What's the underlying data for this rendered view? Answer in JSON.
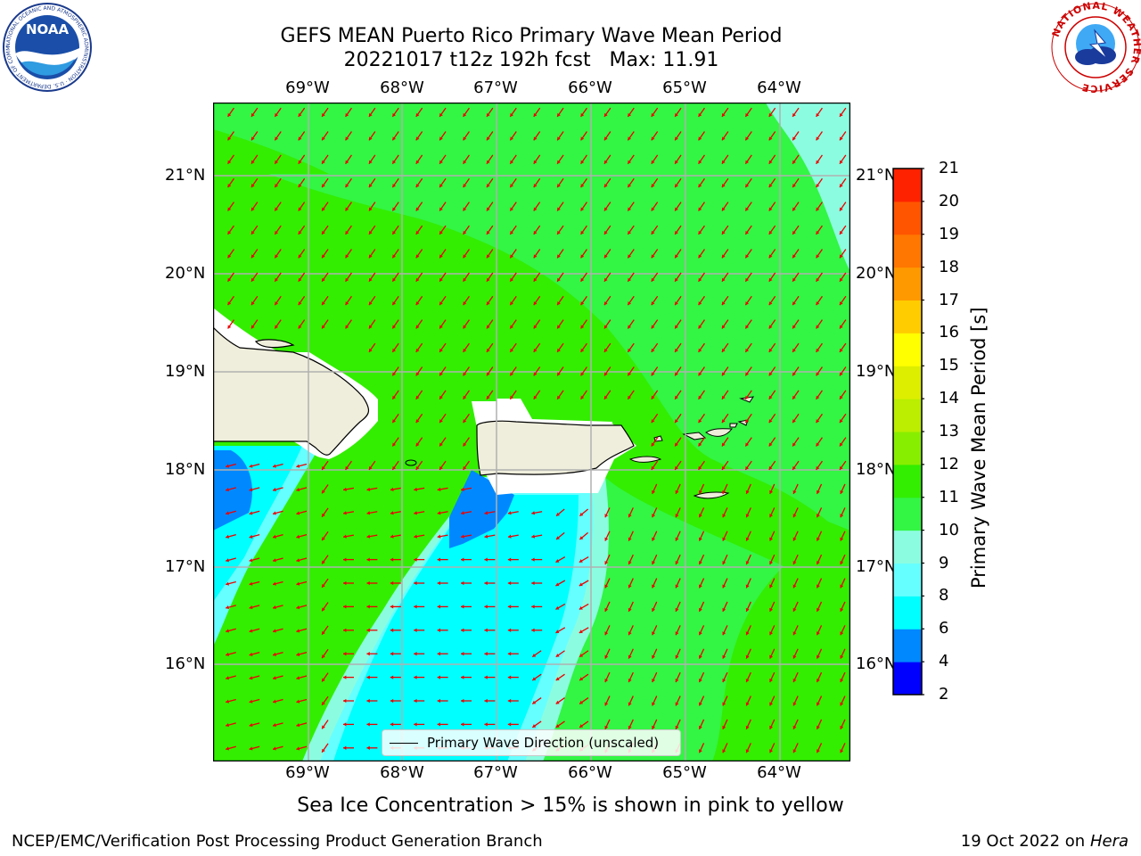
{
  "header": {
    "title_line1": "GEFS MEAN Puerto Rico Primary Wave Mean Period",
    "title_line2": "20221017 t12z 192h fcst   Max: 11.91"
  },
  "logos": {
    "left": "NOAA",
    "left_ring_text": "NATIONAL OCEANIC AND ATMOSPHERIC ADMINISTRATION · U.S. DEPARTMENT OF COMMERCE",
    "right_ring_text": "NATIONAL WEATHER SERVICE"
  },
  "map": {
    "lon_labels": [
      "69°W",
      "68°W",
      "67°W",
      "66°W",
      "65°W",
      "64°W"
    ],
    "lat_labels": [
      "21°N",
      "20°N",
      "19°N",
      "18°N",
      "17°N",
      "16°N"
    ],
    "legend_label": "Primary Wave Direction (unscaled)",
    "colors": {
      "green_11_12": "#33ee00",
      "green_10_11": "#33f544",
      "aqua_9_10": "#8cfce0",
      "cyan_8_9": "#66ffff",
      "cyan_6_8": "#00ffff",
      "blue_4_6": "#0088ff",
      "land": "#efeedc",
      "arrow": "#ee0000"
    }
  },
  "colorbar": {
    "title": "Primary Wave Mean Period [s]",
    "ticks": [
      "2",
      "4",
      "6",
      "8",
      "9",
      "10",
      "11",
      "12",
      "13",
      "14",
      "15",
      "16",
      "17",
      "18",
      "19",
      "20",
      "21"
    ],
    "colors": [
      "#0000ff",
      "#0088ff",
      "#00ffff",
      "#66ffff",
      "#8cfce0",
      "#33f544",
      "#33ee00",
      "#88ee00",
      "#bbee00",
      "#ddee00",
      "#ffff00",
      "#ffcc00",
      "#ff9900",
      "#ff7700",
      "#ff5500",
      "#ff2200"
    ]
  },
  "bottom_note": "Sea Ice Concentration > 15% is shown in pink to yellow",
  "footer": {
    "left": "NCEP/EMC/Verification Post Processing Product Generation Branch",
    "right_date": "19 Oct 2022 on",
    "right_host": "Hera"
  }
}
